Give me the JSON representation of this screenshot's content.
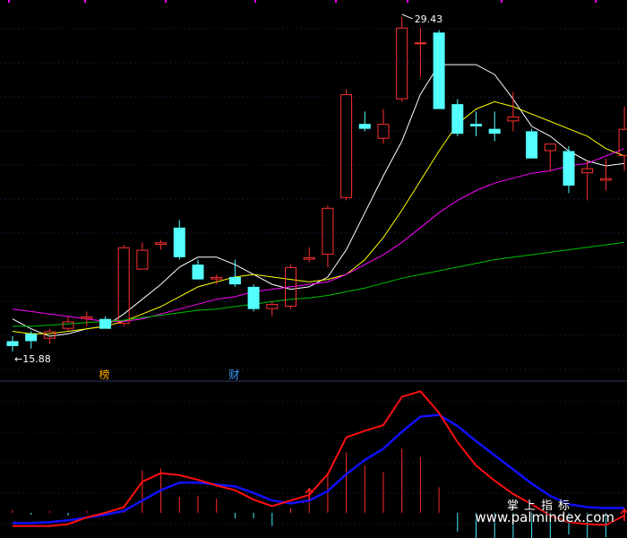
{
  "chart_data": {
    "type": "candlestick",
    "price_panel": {
      "high_label": "29.43",
      "low_label": "15.88",
      "event_markers": [
        {
          "label": "榜",
          "bar_index": 5
        },
        {
          "label": "财",
          "bar_index": 12
        }
      ],
      "candles": [
        {
          "o": 16.3,
          "h": 16.5,
          "l": 15.88,
          "c": 16.1,
          "up": false
        },
        {
          "o": 16.6,
          "h": 16.7,
          "l": 16.0,
          "c": 16.3,
          "up": false
        },
        {
          "o": 16.4,
          "h": 16.8,
          "l": 16.2,
          "c": 16.7,
          "up": true
        },
        {
          "o": 16.8,
          "h": 17.3,
          "l": 16.7,
          "c": 17.1,
          "up": true
        },
        {
          "o": 17.3,
          "h": 17.5,
          "l": 16.9,
          "c": 17.2,
          "up": true
        },
        {
          "o": 16.8,
          "h": 17.3,
          "l": 16.8,
          "c": 17.2,
          "up": false
        },
        {
          "o": 17.0,
          "h": 20.2,
          "l": 16.9,
          "c": 20.1,
          "up": true
        },
        {
          "o": 19.2,
          "h": 20.3,
          "l": 19.2,
          "c": 20.0,
          "up": true
        },
        {
          "o": 20.2,
          "h": 20.4,
          "l": 20.0,
          "c": 20.3,
          "up": true
        },
        {
          "o": 20.9,
          "h": 21.2,
          "l": 19.6,
          "c": 19.7,
          "up": false
        },
        {
          "o": 19.4,
          "h": 19.6,
          "l": 18.9,
          "c": 18.8,
          "up": false
        },
        {
          "o": 18.8,
          "h": 19.0,
          "l": 18.6,
          "c": 18.9,
          "up": true
        },
        {
          "o": 18.9,
          "h": 19.6,
          "l": 18.5,
          "c": 18.6,
          "up": false
        },
        {
          "o": 18.5,
          "h": 18.6,
          "l": 17.5,
          "c": 17.6,
          "up": false
        },
        {
          "o": 17.6,
          "h": 17.9,
          "l": 17.3,
          "c": 17.8,
          "up": true
        },
        {
          "o": 17.7,
          "h": 19.4,
          "l": 17.6,
          "c": 19.3,
          "up": true
        },
        {
          "o": 19.6,
          "h": 20.1,
          "l": 19.5,
          "c": 19.7,
          "up": true
        },
        {
          "o": 19.8,
          "h": 21.8,
          "l": 19.3,
          "c": 21.7,
          "up": true
        },
        {
          "o": 22.1,
          "h": 26.5,
          "l": 22.0,
          "c": 26.3,
          "up": true
        },
        {
          "o": 25.1,
          "h": 25.6,
          "l": 24.8,
          "c": 24.9,
          "up": false
        },
        {
          "o": 24.5,
          "h": 25.7,
          "l": 24.3,
          "c": 25.1,
          "up": true
        },
        {
          "o": 26.1,
          "h": 29.43,
          "l": 26.0,
          "c": 29.0,
          "up": true
        },
        {
          "o": 28.4,
          "h": 29.0,
          "l": 27.0,
          "c": 28.4,
          "up": true
        },
        {
          "o": 28.8,
          "h": 28.9,
          "l": 25.7,
          "c": 25.7,
          "up": false
        },
        {
          "o": 25.9,
          "h": 26.1,
          "l": 24.6,
          "c": 24.7,
          "up": false
        },
        {
          "o": 25.0,
          "h": 25.6,
          "l": 24.6,
          "c": 25.1,
          "up": false
        },
        {
          "o": 24.9,
          "h": 25.6,
          "l": 24.4,
          "c": 24.7,
          "up": false
        },
        {
          "o": 25.2,
          "h": 26.4,
          "l": 24.8,
          "c": 25.4,
          "up": true
        },
        {
          "o": 24.8,
          "h": 24.9,
          "l": 23.7,
          "c": 23.7,
          "up": false
        },
        {
          "o": 24.3,
          "h": 24.3,
          "l": 23.2,
          "c": 24.0,
          "up": true
        },
        {
          "o": 24.0,
          "h": 24.2,
          "l": 22.3,
          "c": 22.6,
          "up": false
        },
        {
          "o": 23.3,
          "h": 23.6,
          "l": 22.0,
          "c": 23.1,
          "up": true
        },
        {
          "o": 22.9,
          "h": 23.7,
          "l": 22.4,
          "c": 22.8,
          "up": true
        },
        {
          "o": 23.8,
          "h": 25.8,
          "l": 23.2,
          "c": 24.9,
          "up": true
        }
      ],
      "ma": [
        {
          "color": "#ffffff",
          "values": [
            17.2,
            16.8,
            16.5,
            16.6,
            16.8,
            16.9,
            17.4,
            18.0,
            18.6,
            19.3,
            19.7,
            19.7,
            19.4,
            19.0,
            18.6,
            18.4,
            18.5,
            18.9,
            20.0,
            21.5,
            23.0,
            24.4,
            26.3,
            27.5,
            27.5,
            27.5,
            27.1,
            26.1,
            25.0,
            24.6,
            24.0,
            23.6,
            23.4,
            23.5
          ]
        },
        {
          "color": "#ffff00",
          "values": [
            16.7,
            16.6,
            16.6,
            16.7,
            16.8,
            16.9,
            17.1,
            17.4,
            17.7,
            18.1,
            18.5,
            18.7,
            18.9,
            19.0,
            18.9,
            18.8,
            18.7,
            18.8,
            19.0,
            19.6,
            20.5,
            21.6,
            22.8,
            24.0,
            25.1,
            25.7,
            26.0,
            25.8,
            25.5,
            25.2,
            24.9,
            24.6,
            24.1,
            23.8
          ]
        },
        {
          "color": "#ff00ff",
          "values": [
            17.6,
            17.5,
            17.4,
            17.3,
            17.2,
            17.1,
            17.1,
            17.2,
            17.4,
            17.6,
            17.8,
            18.0,
            18.1,
            18.3,
            18.4,
            18.5,
            18.6,
            18.7,
            19.0,
            19.4,
            19.8,
            20.3,
            20.9,
            21.5,
            22.0,
            22.4,
            22.7,
            22.9,
            23.1,
            23.2,
            23.4,
            23.5,
            23.8,
            24.1
          ]
        },
        {
          "color": "#00c000",
          "values": [
            16.9,
            16.9,
            16.95,
            17.0,
            17.05,
            17.1,
            17.15,
            17.25,
            17.35,
            17.45,
            17.55,
            17.6,
            17.7,
            17.8,
            17.9,
            18.0,
            18.05,
            18.15,
            18.3,
            18.45,
            18.65,
            18.85,
            19.0,
            19.15,
            19.3,
            19.45,
            19.6,
            19.7,
            19.8,
            19.9,
            20.0,
            20.1,
            20.2,
            20.3
          ]
        }
      ]
    },
    "indicator_panel": {
      "red_line": [
        -1.4,
        -1.4,
        -1.4,
        -1.2,
        -0.5,
        0.0,
        0.6,
        3.3,
        4.2,
        4.0,
        3.5,
        2.9,
        2.4,
        1.4,
        0.7,
        1.3,
        1.9,
        4.1,
        8.0,
        8.7,
        9.3,
        12.3,
        12.9,
        10.6,
        7.5,
        5.0,
        3.4,
        2.0,
        0.9,
        -0.3,
        -1.0,
        -1.2,
        -1.3,
        -0.3
      ],
      "blue_line": [
        -1.1,
        -1.1,
        -1.0,
        -0.8,
        -0.5,
        -0.2,
        0.2,
        1.3,
        2.4,
        3.2,
        3.2,
        3.0,
        2.8,
        2.1,
        1.3,
        1.0,
        1.3,
        2.3,
        4.1,
        5.6,
        6.8,
        8.6,
        10.2,
        10.4,
        9.2,
        7.6,
        6.1,
        4.6,
        3.1,
        1.8,
        0.9,
        0.6,
        0.5,
        0.5
      ],
      "histogram": [
        0.3,
        -0.2,
        0.2,
        -0.3,
        0.2,
        0.1,
        0.2,
        4.5,
        4.7,
        1.7,
        1.8,
        1.5,
        -0.6,
        -0.6,
        -1.4,
        0.5,
        1.1,
        4.0,
        6.4,
        5.0,
        4.3,
        6.8,
        5.9,
        2.7,
        -2.0,
        -2.8,
        -3.0,
        -3.0,
        -3.2,
        -3.5,
        -2.3,
        -2.8,
        -2.6,
        0.4
      ],
      "up_arrows": [
        16,
        33
      ]
    }
  },
  "watermark": {
    "cn": "掌上指标",
    "url": "www.palmindex.com"
  }
}
